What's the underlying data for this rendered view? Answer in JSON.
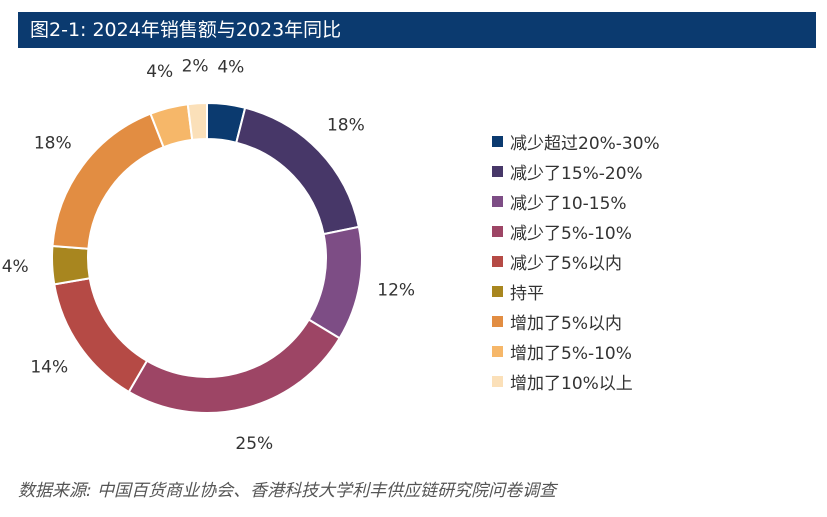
{
  "header": {
    "title": "图2-1: 2024年销售额与2023年同比"
  },
  "chart_data": {
    "type": "pie",
    "donut": true,
    "legend_position": "right",
    "series": [
      {
        "name": "减少超过20%-30%",
        "value": 4,
        "label": "4%",
        "color": "#0b3a6f"
      },
      {
        "name": "减少了15%-20%",
        "value": 18,
        "label": "18%",
        "color": "#473768"
      },
      {
        "name": "减少了10-15%",
        "value": 12,
        "label": "12%",
        "color": "#7d4d85"
      },
      {
        "name": "减少了5%-10%",
        "value": 25,
        "label": "25%",
        "color": "#9d4565"
      },
      {
        "name": "减少了5%以内",
        "value": 14,
        "label": "14%",
        "color": "#b54a45"
      },
      {
        "name": "持平",
        "value": 4,
        "label": "4%",
        "color": "#a8861f"
      },
      {
        "name": "增加了5%以内",
        "value": 18,
        "label": "18%",
        "color": "#e28d42"
      },
      {
        "name": "增加了5%-10%",
        "value": 4,
        "label": "4%",
        "color": "#f6b769"
      },
      {
        "name": "增加了10%以上",
        "value": 2,
        "label": "2%",
        "color": "#fbe0b9"
      }
    ]
  },
  "footer": {
    "source": "数据来源: 中国百货商业协会、香港科技大学利丰供应链研究院问卷调查"
  }
}
